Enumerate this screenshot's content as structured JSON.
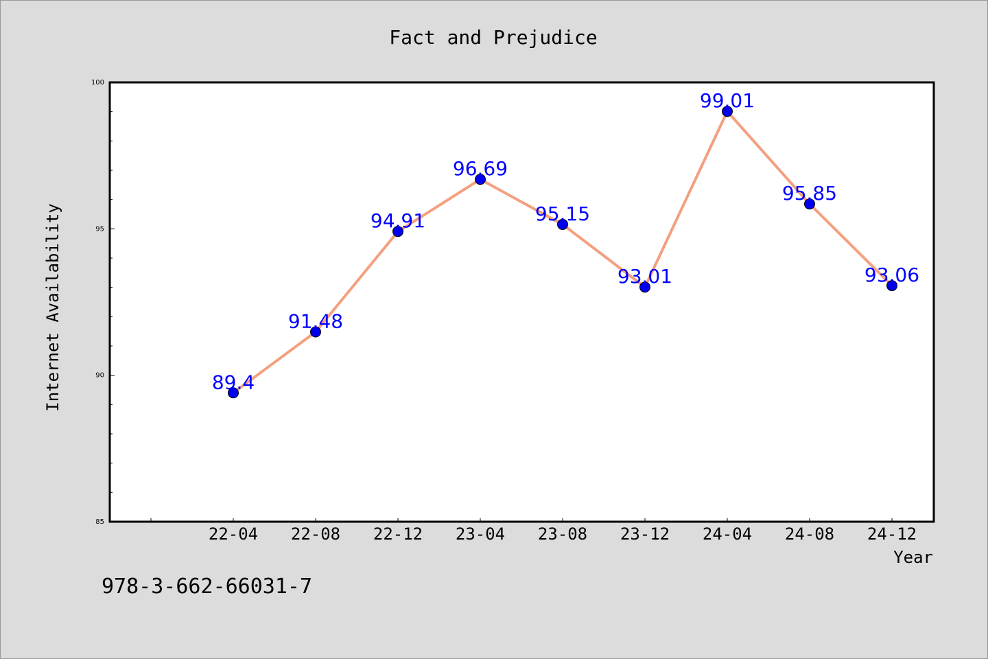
{
  "chart_data": {
    "type": "line",
    "title": "Fact and Prejudice",
    "xlabel": "Year",
    "ylabel": "Internet Availability",
    "categories": [
      "22-04",
      "22-08",
      "22-12",
      "23-04",
      "23-08",
      "23-12",
      "24-04",
      "24-08",
      "24-12"
    ],
    "series": [
      {
        "values": [
          89.4,
          91.48,
          94.91,
          96.69,
          95.15,
          93.01,
          99.01,
          95.85,
          93.06
        ],
        "data_labels": [
          "89.4",
          "91.48",
          "94.91",
          "96.69",
          "95.15",
          "93.01",
          "99.01",
          "95.85",
          "93.06"
        ],
        "line_color": "#f4a07f",
        "marker_color": "#0000ee",
        "label_color": "#0000ff"
      }
    ],
    "ylim": [
      85,
      100
    ],
    "yticks": [
      85,
      90,
      95,
      100
    ],
    "ytick_labels": [
      "85",
      "90",
      "95",
      "100"
    ],
    "grid": false,
    "legend": "none"
  },
  "footer": {
    "isbn": "978-3-662-66031-7"
  },
  "colors": {
    "background": "#dcdcdc",
    "plot_area": "#ffffff",
    "text": "#000000"
  }
}
